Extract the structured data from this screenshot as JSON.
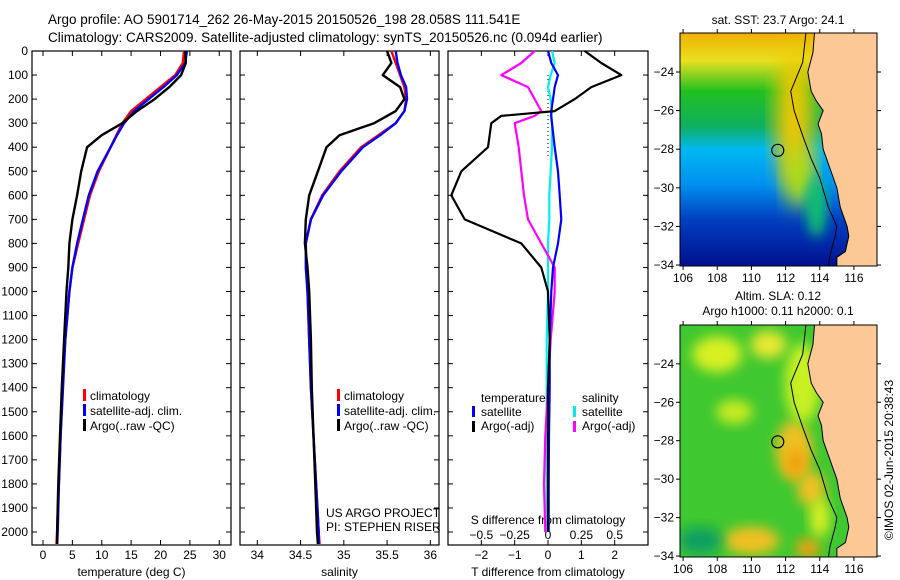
{
  "title": {
    "line1": "Argo profile: AO 5901714_262 26-May-2015 20150526_198 28.058S 111.541E",
    "line2": "Climatology: CARS2009. Satellite-adjusted climatology: synTS_20150526.nc (0.094d earlier)"
  },
  "credits": {
    "project": "US ARGO PROJECT",
    "pi": "PI: STEPHEN RISER",
    "stamp": "©IMOS 02-Jun-2015 20:38:43"
  },
  "colors": {
    "climatology": "#ff0000",
    "satellite": "#0000ff",
    "argo": "#000000",
    "salinity_sat": "#00eeee",
    "salinity_argo": "#ff00ff",
    "land": "#fcc896"
  },
  "chart_data": [
    {
      "type": "line",
      "id": "temperature",
      "xlabel": "temperature (deg C)",
      "ylabel": "",
      "xlim": [
        -1.87,
        32.0
      ],
      "ylim": [
        0,
        2054
      ],
      "y_inverted": true,
      "xticks": [
        0,
        5,
        10,
        15,
        20,
        25,
        30
      ],
      "xtick_labels": [
        "0",
        "5",
        "10",
        "15",
        "20",
        "25",
        "30"
      ],
      "yticks": [
        0,
        100,
        200,
        300,
        400,
        500,
        600,
        700,
        800,
        900,
        1000,
        1100,
        1200,
        1300,
        1400,
        1500,
        1600,
        1700,
        1800,
        1900,
        2000
      ],
      "depth": [
        0,
        50,
        100,
        150,
        200,
        250,
        300,
        350,
        400,
        500,
        600,
        700,
        800,
        900,
        1000,
        1200,
        1400,
        1600,
        1800,
        2000,
        2050
      ],
      "series": [
        {
          "name": "climatology",
          "color": "#ff0000",
          "values": [
            24,
            23.8,
            22.5,
            20,
            17.5,
            15,
            13.5,
            12.5,
            11.5,
            9.5,
            8,
            7,
            6,
            5,
            4.5,
            3.8,
            3.3,
            3,
            2.7,
            2.4,
            2.3
          ]
        },
        {
          "name": "satellite-adj. clim.",
          "color": "#0000ff",
          "values": [
            24.5,
            24.2,
            22.8,
            20.5,
            18,
            15.5,
            13.8,
            12.6,
            11.5,
            9.3,
            7.8,
            6.8,
            5.8,
            5,
            4.5,
            3.8,
            3.4,
            3,
            2.7,
            2.5,
            2.4
          ]
        },
        {
          "name": "Argo(..raw -QC)",
          "color": "#000000",
          "values": [
            24.2,
            24.3,
            23.5,
            21.5,
            19,
            16,
            13.5,
            10,
            7.5,
            6.5,
            5.8,
            5,
            4.5,
            4.3,
            4,
            3.6,
            3.2,
            2.9,
            2.6,
            2.4,
            2.4
          ]
        }
      ]
    },
    {
      "type": "line",
      "id": "salinity",
      "xlabel": "salinity",
      "ylabel": "",
      "xlim": [
        33.8,
        36.1
      ],
      "ylim": [
        0,
        2054
      ],
      "y_inverted": true,
      "xticks": [
        34,
        34.5,
        35,
        35.5,
        36
      ],
      "xtick_labels": [
        "34",
        "34.5",
        "35",
        "35.5",
        "36"
      ],
      "depth": [
        0,
        50,
        100,
        150,
        200,
        250,
        300,
        350,
        400,
        500,
        600,
        700,
        800,
        900,
        1000,
        1200,
        1400,
        1600,
        1800,
        2000,
        2050
      ],
      "series": [
        {
          "name": "climatology",
          "color": "#ff0000",
          "values": [
            35.55,
            35.6,
            35.65,
            35.7,
            35.72,
            35.7,
            35.6,
            35.4,
            35.2,
            34.95,
            34.75,
            34.62,
            34.56,
            34.57,
            34.58,
            34.6,
            34.62,
            34.65,
            34.68,
            34.71,
            34.72
          ]
        },
        {
          "name": "satellite-adj. clim.",
          "color": "#0000ff",
          "values": [
            35.6,
            35.62,
            35.66,
            35.72,
            35.73,
            35.7,
            35.6,
            35.42,
            35.22,
            34.97,
            34.76,
            34.62,
            34.56,
            34.56,
            34.58,
            34.6,
            34.62,
            34.65,
            34.68,
            34.71,
            34.71
          ]
        },
        {
          "name": "Argo(..raw -QC)",
          "color": "#000000",
          "values": [
            35.5,
            35.55,
            35.45,
            35.65,
            35.7,
            35.6,
            35.35,
            34.95,
            34.8,
            34.7,
            34.6,
            34.56,
            34.55,
            34.58,
            34.6,
            34.62,
            34.63,
            34.65,
            34.67,
            34.69,
            34.7
          ]
        }
      ]
    },
    {
      "type": "line",
      "id": "difference",
      "xlabel": "T difference from climatology",
      "x2label": "S difference from climatology",
      "xlim": [
        -3,
        3
      ],
      "x2lim": [
        -0.75,
        0.75
      ],
      "ylim": [
        0,
        2054
      ],
      "y_inverted": true,
      "xticks": [
        -2,
        -1,
        0,
        1,
        2
      ],
      "xtick_labels": [
        "-2",
        "-1",
        "0",
        "1",
        "2"
      ],
      "x2ticks": [
        -0.5,
        -0.25,
        0,
        0.25,
        0.5
      ],
      "x2tick_labels": [
        "-0.5",
        "-0.25",
        "0",
        "0.25",
        "0.5"
      ],
      "legend_headers": [
        "temperature",
        "salinity"
      ],
      "depth": [
        0,
        50,
        100,
        150,
        200,
        250,
        270,
        300,
        400,
        500,
        600,
        700,
        800,
        900,
        1000,
        1200,
        1400,
        1600,
        1800,
        2000
      ],
      "series": [
        {
          "name": "satellite",
          "group": "temperature",
          "axis": "T",
          "color": "#0000ff",
          "values": [
            0,
            0.1,
            0.3,
            0.2,
            0.15,
            0.1,
            0.1,
            0.12,
            0.2,
            0.3,
            0.35,
            0.4,
            0.3,
            0.15,
            0.1,
            0.05,
            0.05,
            0.03,
            0.02,
            0.02
          ]
        },
        {
          "name": "Argo(-adj)",
          "group": "temperature",
          "axis": "T",
          "color": "#000000",
          "values": [
            1.1,
            1.6,
            2.2,
            1.3,
            0.8,
            0.2,
            -1.4,
            -1.7,
            -1.8,
            -2.6,
            -2.9,
            -2.5,
            -0.8,
            -0.2,
            0,
            0.05,
            0,
            0,
            0,
            0
          ]
        },
        {
          "name": "satellite",
          "group": "salinity",
          "axis": "S",
          "color": "#00eeee",
          "values": [
            0.03,
            0.05,
            0.02,
            0,
            0.02,
            0.03,
            0.02,
            0.03,
            0.03,
            0.02,
            0.01,
            0.01,
            0,
            0,
            0,
            -0.01,
            -0.01,
            -0.01,
            -0.01,
            -0.01
          ]
        },
        {
          "name": "Argo(-adj)",
          "group": "salinity",
          "axis": "S",
          "color": "#ff00ff",
          "values": [
            -0.1,
            -0.2,
            -0.35,
            -0.15,
            -0.1,
            -0.05,
            -0.1,
            -0.25,
            -0.22,
            -0.2,
            -0.18,
            -0.15,
            -0.05,
            0.05,
            0.05,
            0.02,
            0,
            -0.02,
            -0.03,
            -0.02
          ]
        }
      ]
    },
    {
      "type": "heatmap",
      "id": "sst_map",
      "title": "sat. SST: 23.7 Argo: 24.1",
      "xlim": [
        105.82,
        117.35
      ],
      "ylim": [
        -34.05,
        -21.98
      ],
      "xticks": [
        106,
        108,
        110,
        112,
        114,
        116
      ],
      "xtick_labels": [
        "106",
        "108",
        "110",
        "112",
        "114",
        "116"
      ],
      "yticks": [
        -24,
        -26,
        -28,
        -30,
        -32,
        -34
      ],
      "ytick_labels": [
        "-24",
        "-26",
        "-28",
        "-30",
        "-32",
        "-34"
      ],
      "marker": {
        "lon": 111.541,
        "lat": -28.058
      }
    },
    {
      "type": "heatmap",
      "id": "sla_map",
      "title": "Altim. SLA: 0.12",
      "subtitle": "Argo h1000: 0.11 h2000: 0.1",
      "xlim": [
        105.82,
        117.35
      ],
      "ylim": [
        -34.05,
        -21.98
      ],
      "xticks": [
        106,
        108,
        110,
        112,
        114,
        116
      ],
      "xtick_labels": [
        "106",
        "108",
        "110",
        "112",
        "114",
        "116"
      ],
      "yticks": [
        -24,
        -26,
        -28,
        -30,
        -32,
        -34
      ],
      "ytick_labels": [
        "-24",
        "-26",
        "-28",
        "-30",
        "-32",
        "-34"
      ],
      "marker": {
        "lon": 111.541,
        "lat": -28.058
      }
    }
  ]
}
